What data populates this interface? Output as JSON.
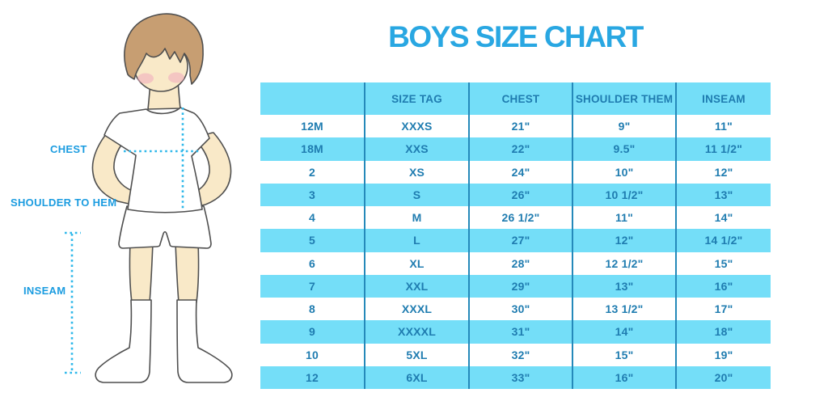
{
  "page": {
    "title": "BOYS SIZE CHART"
  },
  "colors": {
    "title": "#29a7e2",
    "label": "#1b9ce0",
    "dotted": "#2eb8ea",
    "stripe": "#74def8",
    "divider": "#2589ba",
    "table_text": "#1f7cb0",
    "skin": "#f9e9c8",
    "hair": "#c79e72",
    "blush": "#f0a9bd",
    "outline": "#4f4f4f",
    "garment": "#ffffff"
  },
  "figure": {
    "labels": {
      "chest": "CHEST",
      "shoulder_to_hem": "SHOULDER TO HEM",
      "inseam": "INSEAM"
    }
  },
  "chart_data": {
    "type": "table",
    "title": "BOYS SIZE CHART",
    "columns": [
      "",
      "SIZE TAG",
      "CHEST",
      "SHOULDER THEM",
      "INSEAM"
    ],
    "rows": [
      [
        "12M",
        "XXXS",
        "21\"",
        "9\"",
        "11\""
      ],
      [
        "18M",
        "XXS",
        "22\"",
        "9.5\"",
        "11 1/2\""
      ],
      [
        "2",
        "XS",
        "24\"",
        "10\"",
        "12\""
      ],
      [
        "3",
        "S",
        "26\"",
        "10 1/2\"",
        "13\""
      ],
      [
        "4",
        "M",
        "26 1/2\"",
        "11\"",
        "14\""
      ],
      [
        "5",
        "L",
        "27\"",
        "12\"",
        "14 1/2\""
      ],
      [
        "6",
        "XL",
        "28\"",
        "12 1/2\"",
        "15\""
      ],
      [
        "7",
        "XXL",
        "29\"",
        "13\"",
        "16\""
      ],
      [
        "8",
        "XXXL",
        "30\"",
        "13 1/2\"",
        "17\""
      ],
      [
        "9",
        "XXXXL",
        "31\"",
        "14\"",
        "18\""
      ],
      [
        "10",
        "5XL",
        "32\"",
        "15\"",
        "19\""
      ],
      [
        "12",
        "6XL",
        "33\"",
        "16\"",
        "20\""
      ]
    ],
    "layout": {
      "row_striping": "alternate-white-blue",
      "header_filled": true,
      "outer_border": false
    }
  }
}
